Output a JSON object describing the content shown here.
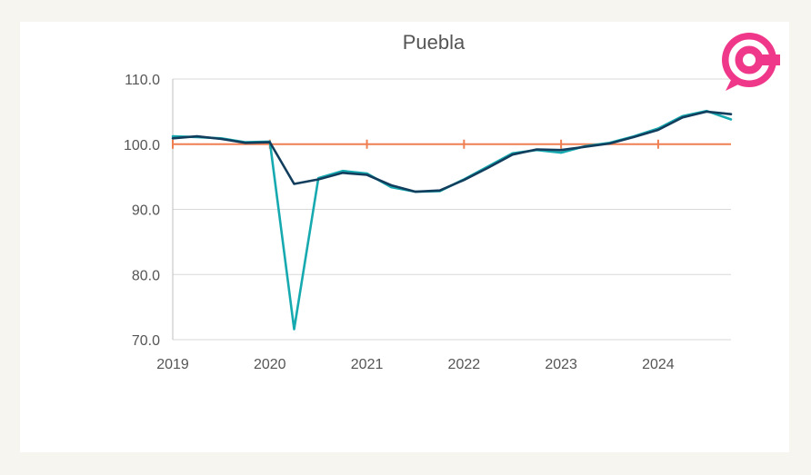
{
  "chart_data": {
    "type": "line",
    "title": "Puebla",
    "xlabel": "",
    "ylabel": "",
    "x_ticks": [
      "2019",
      "2020",
      "2021",
      "2022",
      "2023",
      "2024"
    ],
    "y_ticks": [
      "70.0",
      "80.0",
      "90.0",
      "100.0",
      "110.0"
    ],
    "xlim": [
      2019.0,
      2024.75
    ],
    "ylim": [
      70,
      110
    ],
    "grid": true,
    "legend": "none",
    "reference_line": 100,
    "x": [
      2019.0,
      2019.25,
      2019.5,
      2019.75,
      2020.0,
      2020.25,
      2020.5,
      2020.75,
      2021.0,
      2021.25,
      2021.5,
      2021.75,
      2022.0,
      2022.25,
      2022.5,
      2022.75,
      2023.0,
      2023.25,
      2023.5,
      2023.75,
      2024.0,
      2024.25,
      2024.5,
      2024.75
    ],
    "series": [
      {
        "color": "#16aab0",
        "values": [
          101.2,
          101.1,
          100.9,
          100.3,
          100.4,
          71.6,
          94.8,
          95.9,
          95.5,
          93.4,
          92.7,
          92.8,
          94.6,
          96.6,
          98.6,
          99.1,
          98.7,
          99.7,
          100.2,
          101.2,
          102.4,
          104.3,
          105.1,
          103.8
        ]
      },
      {
        "color": "#123e5e",
        "values": [
          100.9,
          101.2,
          100.8,
          100.2,
          100.3,
          93.9,
          94.6,
          95.6,
          95.3,
          93.7,
          92.7,
          92.9,
          94.5,
          96.4,
          98.4,
          99.2,
          99.1,
          99.6,
          100.1,
          101.1,
          102.2,
          104.1,
          105.0,
          104.6
        ]
      }
    ],
    "reference_color": "#ef7f52",
    "grid_color": "#d9d9d9",
    "logo_color": "#f0388a"
  }
}
